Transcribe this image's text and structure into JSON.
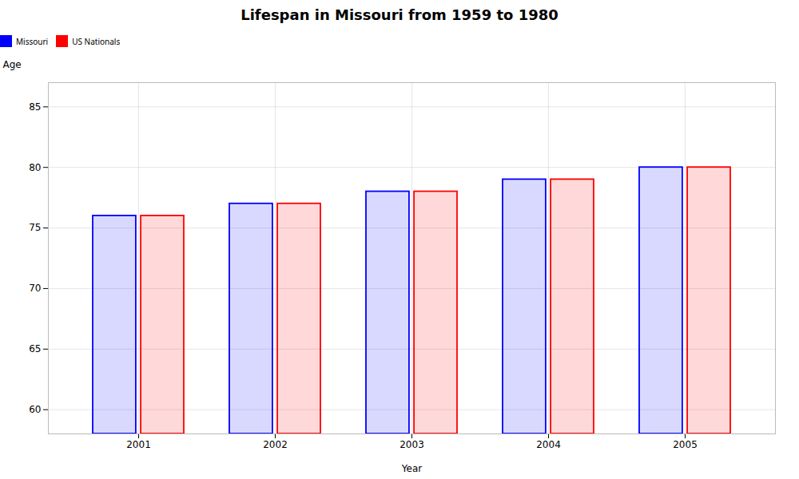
{
  "chart_data": {
    "type": "bar",
    "title": "Lifespan in Missouri from 1959 to 1980",
    "xlabel": "Year",
    "ylabel": "Age",
    "categories": [
      "2001",
      "2002",
      "2003",
      "2004",
      "2005"
    ],
    "series": [
      {
        "name": "Missouri",
        "color": "#0000ff",
        "values": [
          76,
          77,
          78,
          79,
          80
        ]
      },
      {
        "name": "US Nationals",
        "color": "#ff0000",
        "values": [
          76,
          77,
          78,
          79,
          80
        ]
      }
    ],
    "ylim": [
      58,
      87
    ],
    "yticks": [
      60,
      65,
      70,
      75,
      80,
      85
    ],
    "grid": true,
    "legend": "top"
  }
}
